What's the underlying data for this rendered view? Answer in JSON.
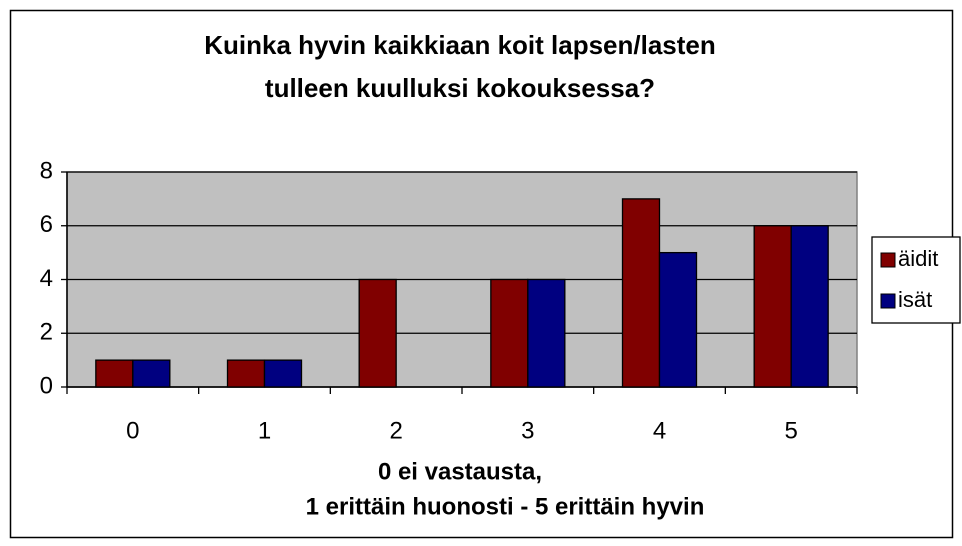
{
  "chart_data": {
    "type": "bar",
    "title": [
      "Kuinka hyvin kaikkiaan koit lapsen/lasten",
      "tulleen kuulluksi kokouksessa?"
    ],
    "x_label": [
      "0 ei vastausta,",
      "1 erittäin huonosti - 5 erittäin hyvin"
    ],
    "categories": [
      "0",
      "1",
      "2",
      "3",
      "4",
      "5"
    ],
    "series": [
      {
        "name": "äidit",
        "color": "#800000",
        "values": [
          1,
          1,
          4,
          4,
          7,
          6
        ]
      },
      {
        "name": "isät",
        "color": "#000080",
        "values": [
          1,
          1,
          0,
          4,
          5,
          6
        ]
      }
    ],
    "ylim": [
      0,
      8
    ],
    "yticks": [
      0,
      2,
      4,
      6,
      8
    ],
    "grid": true,
    "legend": "right"
  }
}
